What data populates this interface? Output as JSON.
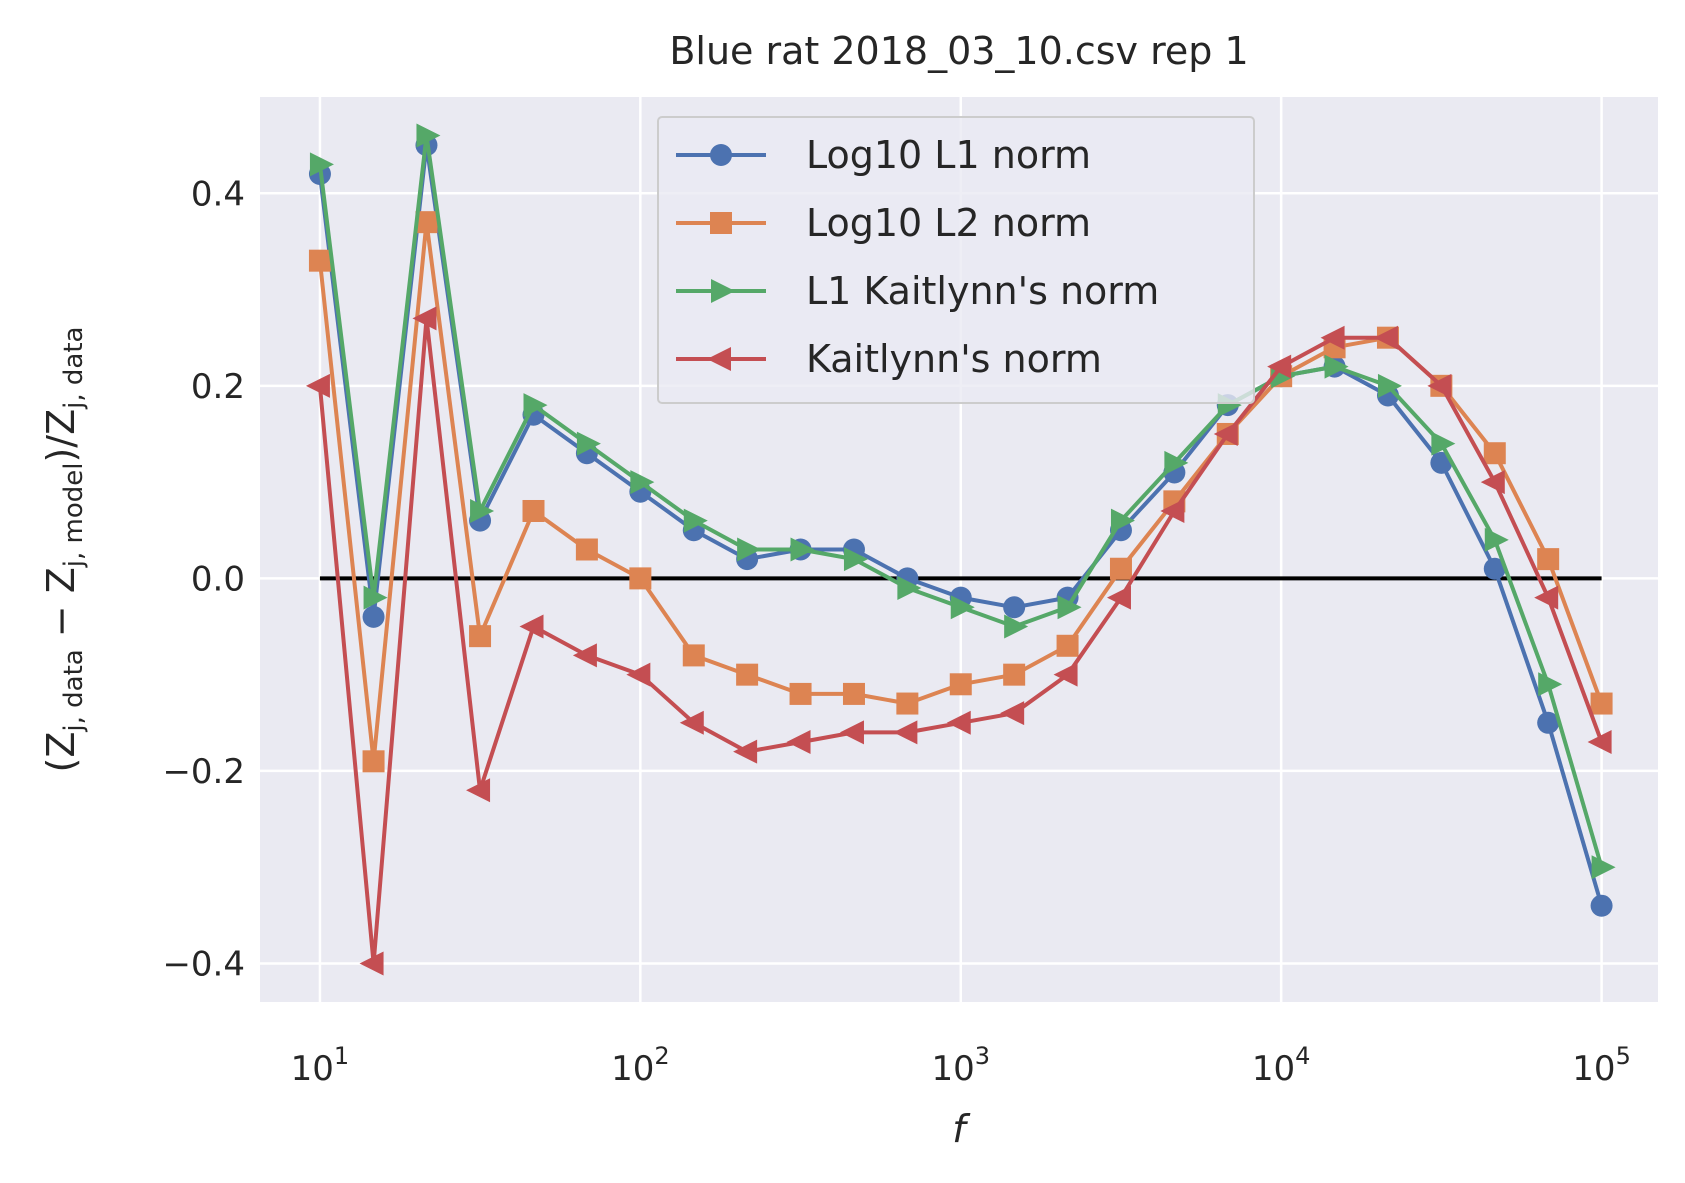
{
  "chart_data": {
    "type": "line",
    "title": "Blue rat 2018_03_10.csv rep 1",
    "xlabel": "f",
    "ylabel": "(Z_{j,data} − Z_{j,model})/Z_{j,data}",
    "ylabel_parts": {
      "open": "(Z",
      "sub1": "j, data",
      "minus": " − Z",
      "sub2": "j, model",
      "mid": ")/Z",
      "sub3": "j, data"
    },
    "x_scale": "log",
    "xlim": [
      6.5,
      150000
    ],
    "ylim": [
      -0.44,
      0.5
    ],
    "xticks": [
      {
        "value": 10,
        "base": "10",
        "exp": "1"
      },
      {
        "value": 100,
        "base": "10",
        "exp": "2"
      },
      {
        "value": 1000,
        "base": "10",
        "exp": "3"
      },
      {
        "value": 10000,
        "base": "10",
        "exp": "4"
      },
      {
        "value": 100000,
        "base": "10",
        "exp": "5"
      }
    ],
    "yticks": [
      {
        "value": 0.4,
        "label": "0.4"
      },
      {
        "value": 0.2,
        "label": "0.2"
      },
      {
        "value": 0.0,
        "label": "0.0"
      },
      {
        "value": -0.2,
        "label": "−0.2"
      },
      {
        "value": -0.4,
        "label": "−0.4"
      }
    ],
    "grid": true,
    "background": "#eaeaf2",
    "legend_position": "top-center",
    "reference_line": {
      "y": 0,
      "x_start": 10,
      "x_end": 100000,
      "color": "#000000"
    },
    "series": [
      {
        "name": "Log10 L1 norm",
        "color": "#4c72b0",
        "marker": "circle",
        "x": [
          10,
          14.7,
          21.5,
          31.6,
          46.4,
          68.1,
          100,
          146.8,
          215.4,
          316.2,
          464.2,
          681.3,
          1000,
          1467.8,
          2154.4,
          3162.3,
          4641.6,
          6812.9,
          10000,
          14678,
          21544,
          31623,
          46416,
          68129,
          100000
        ],
        "y": [
          0.42,
          -0.04,
          0.45,
          0.06,
          0.17,
          0.13,
          0.09,
          0.05,
          0.02,
          0.03,
          0.03,
          0.0,
          -0.02,
          -0.03,
          -0.02,
          0.05,
          0.11,
          0.18,
          0.21,
          0.22,
          0.19,
          0.12,
          0.01,
          -0.15,
          -0.34
        ]
      },
      {
        "name": "Log10 L2 norm",
        "color": "#dd8452",
        "marker": "square",
        "x": [
          10,
          14.7,
          21.5,
          31.6,
          46.4,
          68.1,
          100,
          146.8,
          215.4,
          316.2,
          464.2,
          681.3,
          1000,
          1467.8,
          2154.4,
          3162.3,
          4641.6,
          6812.9,
          10000,
          14678,
          21544,
          31623,
          46416,
          68129,
          100000
        ],
        "y": [
          0.33,
          -0.19,
          0.37,
          -0.06,
          0.07,
          0.03,
          0.0,
          -0.08,
          -0.1,
          -0.12,
          -0.12,
          -0.13,
          -0.11,
          -0.1,
          -0.07,
          0.01,
          0.08,
          0.15,
          0.21,
          0.24,
          0.25,
          0.2,
          0.13,
          0.02,
          -0.13
        ]
      },
      {
        "name": "L1 Kaitlynn's norm",
        "color": "#55a868",
        "marker": "triangle-right",
        "x": [
          10,
          14.7,
          21.5,
          31.6,
          46.4,
          68.1,
          100,
          146.8,
          215.4,
          316.2,
          464.2,
          681.3,
          1000,
          1467.8,
          2154.4,
          3162.3,
          4641.6,
          6812.9,
          10000,
          14678,
          21544,
          31623,
          46416,
          68129,
          100000
        ],
        "y": [
          0.43,
          -0.02,
          0.46,
          0.07,
          0.18,
          0.14,
          0.1,
          0.06,
          0.03,
          0.03,
          0.02,
          -0.01,
          -0.03,
          -0.05,
          -0.03,
          0.06,
          0.12,
          0.18,
          0.21,
          0.22,
          0.2,
          0.14,
          0.04,
          -0.11,
          -0.3
        ]
      },
      {
        "name": "Kaitlynn's norm",
        "color": "#c44e52",
        "marker": "triangle-left",
        "x": [
          10,
          14.7,
          21.5,
          31.6,
          46.4,
          68.1,
          100,
          146.8,
          215.4,
          316.2,
          464.2,
          681.3,
          1000,
          1467.8,
          2154.4,
          3162.3,
          4641.6,
          6812.9,
          10000,
          14678,
          21544,
          31623,
          46416,
          68129,
          100000
        ],
        "y": [
          0.2,
          -0.4,
          0.27,
          -0.22,
          -0.05,
          -0.08,
          -0.1,
          -0.15,
          -0.18,
          -0.17,
          -0.16,
          -0.16,
          -0.15,
          -0.14,
          -0.1,
          -0.02,
          0.07,
          0.15,
          0.22,
          0.25,
          0.25,
          0.2,
          0.1,
          -0.02,
          -0.17
        ]
      }
    ]
  }
}
